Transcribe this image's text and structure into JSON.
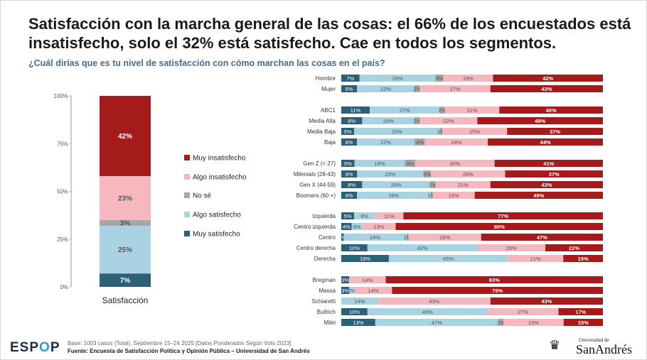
{
  "title": "Satisfacción con la marcha general de las cosas: el 66% de los encuestados está insatisfecho, solo el 32% está satisfecho. Cae en todos los segmentos.",
  "subtitle": "¿Cuál dirías que es tu nivel de satisfacción con cómo marchan las cosas en el país?",
  "colors": {
    "muy_satisfecho": "#2c5f78",
    "algo_satisfecho": "#a9d3e2",
    "no_se": "#a6a6a6",
    "algo_insatisfecho": "#f6b8bf",
    "muy_insatisfecho": "#a51b1b"
  },
  "chart_data": [
    {
      "type": "bar",
      "stacked": true,
      "categories": [
        "Satisfacción"
      ],
      "ylim": [
        0,
        100
      ],
      "yticks": [
        "0%",
        "25%",
        "50%",
        "75%",
        "100%"
      ],
      "grid": false,
      "legend_position": "right",
      "series": [
        {
          "name": "Muy satisfecho",
          "key": "muy_satisfecho",
          "values": [
            7
          ],
          "labels": [
            "7%"
          ]
        },
        {
          "name": "Algo satisfecho",
          "key": "algo_satisfecho",
          "values": [
            25
          ],
          "labels": [
            "25%"
          ]
        },
        {
          "name": "No sé",
          "key": "no_se",
          "values": [
            3
          ],
          "labels": [
            "3%"
          ]
        },
        {
          "name": "Algo insatisfecho",
          "key": "algo_insatisfecho",
          "values": [
            23
          ],
          "labels": [
            "23%"
          ]
        },
        {
          "name": "Muy insatisfecho",
          "key": "muy_insatisfecho",
          "values": [
            42
          ],
          "labels": [
            "42%"
          ]
        }
      ],
      "legend_order": [
        "Muy insatisfecho",
        "Algo insatisfecho",
        "No sé",
        "Algo satisfecho",
        "Muy satisfecho"
      ]
    },
    {
      "type": "bar",
      "orientation": "horizontal",
      "stacked": true,
      "series_order": [
        "muy_satisfecho",
        "algo_satisfecho",
        "no_se",
        "algo_insatisfecho",
        "muy_insatisfecho"
      ],
      "groups": [
        {
          "rows": [
            {
              "label": "Hombre",
              "values": [
                7,
                29,
                3,
                19,
                42
              ]
            },
            {
              "label": "Mujer",
              "values": [
                6,
                22,
                2,
                27,
                43
              ]
            }
          ]
        },
        {
          "rows": [
            {
              "label": "ABC1",
              "values": [
                11,
                27,
                2,
                21,
                40
              ]
            },
            {
              "label": "Media Alta",
              "values": [
                8,
                20,
                2,
                22,
                48
              ]
            },
            {
              "label": "Media Baja",
              "values": [
                5,
                33,
                1,
                25,
                37
              ]
            },
            {
              "label": "Baja",
              "values": [
                6,
                22,
                4,
                24,
                44
              ]
            }
          ]
        },
        {
          "rows": [
            {
              "label": "Gen Z (< 27)",
              "values": [
                5,
                19,
                4,
                30,
                41
              ]
            },
            {
              "label": "Milenials (28-43)",
              "values": [
                6,
                25,
                3,
                28,
                37
              ]
            },
            {
              "label": "Gen X (44-59)",
              "values": [
                8,
                26,
                2,
                21,
                43
              ]
            },
            {
              "label": "Boomers (60 +)",
              "values": [
                6,
                28,
                1,
                16,
                49
              ]
            }
          ]
        },
        {
          "rows": [
            {
              "label": "Izquierda",
              "values": [
                5,
                8,
                0,
                11,
                77
              ]
            },
            {
              "label": "Centro izquierda",
              "values": [
                4,
                4,
                0,
                13,
                80
              ]
            },
            {
              "label": "Centro",
              "values": [
                1,
                24,
                1,
                28,
                47
              ]
            },
            {
              "label": "Centro derecha",
              "values": [
                10,
                42,
                0,
                26,
                22
              ]
            },
            {
              "label": "Derecha",
              "values": [
                18,
                45,
                0,
                21,
                15
              ]
            }
          ]
        },
        {
          "rows": [
            {
              "label": "Bregman",
              "values": [
                3,
                0,
                0,
                14,
                83
              ]
            },
            {
              "label": "Massa",
              "values": [
                3,
                2,
                0,
                14,
                79
              ]
            },
            {
              "label": "Schiaretti",
              "values": [
                0,
                14,
                0,
                43,
                43
              ]
            },
            {
              "label": "Bullrich",
              "values": [
                10,
                46,
                0,
                27,
                17
              ]
            },
            {
              "label": "Milei",
              "values": [
                13,
                47,
                2,
                23,
                15
              ]
            }
          ]
        }
      ]
    }
  ],
  "footer": {
    "logo_main": "ESP",
    "logo_o": "O",
    "logo_end": "P",
    "base": "Base: 1003 casos (Total), Septiembre 15–24 2025 [Datos Ponderados Según Voto 2023]",
    "fuente": "Fuente: Encuesta de Satisfacción Política y Opinión Pública – Universidad de San Andrés",
    "university_small": "Universidad de",
    "university_big": "SanAndrés"
  }
}
